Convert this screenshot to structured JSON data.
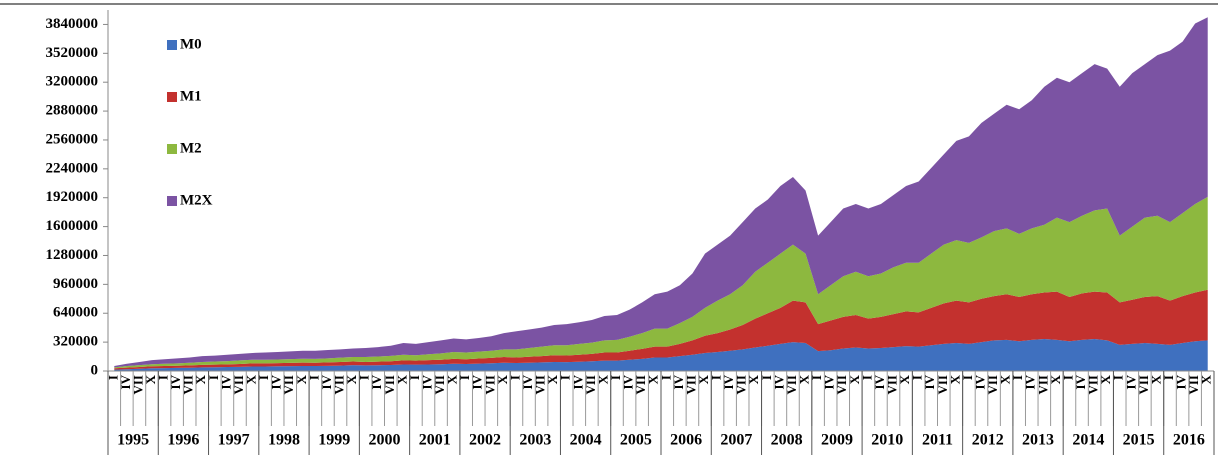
{
  "chart_data": {
    "type": "stacked-area",
    "categories": [
      "I",
      "IV",
      "VII",
      "X",
      "I",
      "IV",
      "VII",
      "X",
      "I",
      "IV",
      "VII",
      "X",
      "I",
      "IV",
      "VII",
      "X",
      "I",
      "IV",
      "VII",
      "X",
      "I",
      "IV",
      "VII",
      "X",
      "I",
      "IV",
      "VII",
      "X",
      "I",
      "IV",
      "VII",
      "X",
      "I",
      "IV",
      "VII",
      "X",
      "I",
      "IV",
      "VII",
      "X",
      "I",
      "IV",
      "VII",
      "X",
      "I",
      "IV",
      "VII",
      "X",
      "I",
      "IV",
      "VII",
      "X",
      "I",
      "IV",
      "VII",
      "X",
      "I",
      "IV",
      "VII",
      "X",
      "I",
      "IV",
      "VII",
      "X",
      "I",
      "IV",
      "VII",
      "X",
      "I",
      "IV",
      "VII",
      "X",
      "I",
      "IV",
      "VII",
      "X",
      "I",
      "IV",
      "VII",
      "X",
      "I",
      "IV",
      "VII",
      "X",
      "I",
      "IV",
      "VII",
      "X"
    ],
    "years": [
      "1995",
      "1996",
      "1997",
      "1998",
      "1999",
      "2000",
      "2001",
      "2002",
      "2003",
      "2004",
      "2005",
      "2006",
      "2007",
      "2008",
      "2009",
      "2010",
      "2011",
      "2012",
      "2013",
      "2014",
      "2015",
      "2016"
    ],
    "series": [
      {
        "name": "M0",
        "color": "#3f70bf",
        "values": [
          15000,
          20000,
          25000,
          30000,
          32000,
          34000,
          36000,
          40000,
          42000,
          44000,
          46000,
          50000,
          50000,
          52000,
          54000,
          56000,
          55000,
          57000,
          60000,
          65000,
          62000,
          64000,
          66000,
          72000,
          70000,
          72000,
          75000,
          80000,
          78000,
          82000,
          86000,
          92000,
          88000,
          92000,
          95000,
          100000,
          98000,
          102000,
          108000,
          115000,
          115000,
          125000,
          135000,
          150000,
          150000,
          165000,
          180000,
          200000,
          210000,
          225000,
          240000,
          260000,
          280000,
          300000,
          320000,
          310000,
          220000,
          230000,
          250000,
          260000,
          250000,
          255000,
          265000,
          275000,
          270000,
          285000,
          300000,
          310000,
          300000,
          320000,
          340000,
          345000,
          330000,
          345000,
          355000,
          345000,
          330000,
          345000,
          355000,
          340000,
          290000,
          300000,
          310000,
          300000,
          290000,
          310000,
          330000,
          340000
        ]
      },
      {
        "name": "M1",
        "color": "#c3312e",
        "values": [
          15000,
          18000,
          20000,
          22000,
          23000,
          24000,
          26000,
          28000,
          28000,
          30000,
          32000,
          35000,
          35000,
          35000,
          36000,
          37000,
          37000,
          38000,
          40000,
          40000,
          38000,
          40000,
          42000,
          46000,
          45000,
          48000,
          50000,
          55000,
          52000,
          56000,
          59000,
          63000,
          62000,
          66000,
          70000,
          75000,
          74000,
          78000,
          82000,
          90000,
          90000,
          100000,
          110000,
          120000,
          120000,
          135000,
          160000,
          190000,
          210000,
          235000,
          270000,
          320000,
          360000,
          400000,
          460000,
          450000,
          300000,
          330000,
          350000,
          360000,
          330000,
          345000,
          365000,
          385000,
          380000,
          415000,
          450000,
          470000,
          460000,
          480000,
          490000,
          505000,
          490000,
          505000,
          515000,
          535000,
          490000,
          515000,
          525000,
          530000,
          470000,
          490000,
          510000,
          530000,
          490000,
          520000,
          540000,
          560000
        ]
      },
      {
        "name": "M2",
        "color": "#8db83f",
        "values": [
          10000,
          17000,
          20000,
          23000,
          25000,
          27000,
          30000,
          32000,
          35000,
          36000,
          40000,
          40000,
          40000,
          41000,
          42000,
          43000,
          43000,
          45000,
          48000,
          50000,
          55000,
          56000,
          60000,
          62000,
          60000,
          65000,
          70000,
          75000,
          75000,
          77000,
          80000,
          85000,
          90000,
          97000,
          105000,
          110000,
          113000,
          120000,
          125000,
          135000,
          140000,
          155000,
          175000,
          200000,
          200000,
          230000,
          260000,
          310000,
          360000,
          390000,
          440000,
          520000,
          560000,
          600000,
          620000,
          540000,
          330000,
          390000,
          450000,
          480000,
          470000,
          480000,
          520000,
          540000,
          550000,
          600000,
          650000,
          670000,
          660000,
          680000,
          720000,
          730000,
          700000,
          730000,
          750000,
          820000,
          830000,
          860000,
          900000,
          930000,
          740000,
          810000,
          880000,
          890000,
          870000,
          920000,
          980000,
          1030000
        ]
      },
      {
        "name": "M2X",
        "color": "#7b53a3",
        "values": [
          15000,
          25000,
          35000,
          45000,
          50000,
          55000,
          58000,
          65000,
          65000,
          70000,
          72000,
          75000,
          80000,
          82000,
          86000,
          89000,
          90000,
          92000,
          92000,
          95000,
          100000,
          105000,
          112000,
          130000,
          125000,
          135000,
          145000,
          150000,
          145000,
          150000,
          160000,
          180000,
          200000,
          205000,
          210000,
          225000,
          235000,
          240000,
          250000,
          270000,
          275000,
          300000,
          340000,
          380000,
          410000,
          420000,
          480000,
          600000,
          620000,
          650000,
          700000,
          700000,
          700000,
          750000,
          750000,
          700000,
          650000,
          700000,
          750000,
          750000,
          750000,
          770000,
          800000,
          850000,
          900000,
          950000,
          1000000,
          1100000,
          1180000,
          1270000,
          1300000,
          1370000,
          1380000,
          1420000,
          1530000,
          1550000,
          1550000,
          1580000,
          1620000,
          1550000,
          1650000,
          1700000,
          1700000,
          1780000,
          1900000,
          1900000,
          2000000,
          1990000
        ]
      }
    ],
    "ylim": [
      0,
      4000000
    ],
    "yticks": [
      0,
      320000,
      640000,
      960000,
      1280000,
      1600000,
      1920000,
      2240000,
      2560000,
      2880000,
      3200000,
      3520000,
      3840000
    ],
    "legend": "upper-left"
  }
}
